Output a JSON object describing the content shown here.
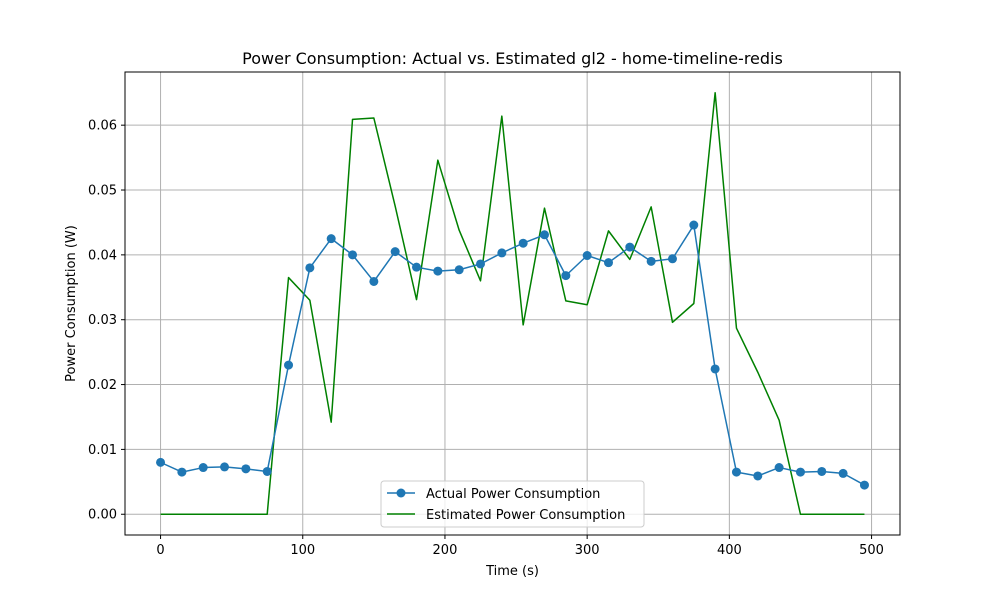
{
  "chart_data": {
    "type": "line",
    "title": "Power Consumption: Actual vs. Estimated gl2 - home-timeline-redis",
    "xlabel": "Time (s)",
    "ylabel": "Power Consumption (W)",
    "xlim": [
      -25,
      520
    ],
    "ylim": [
      -0.0032,
      0.0682
    ],
    "xticks": [
      0,
      100,
      200,
      300,
      400,
      500
    ],
    "yticks": [
      0.0,
      0.01,
      0.02,
      0.03,
      0.04,
      0.05,
      0.06
    ],
    "xtick_labels": [
      "0",
      "100",
      "200",
      "300",
      "400",
      "500"
    ],
    "ytick_labels": [
      "0.00",
      "0.01",
      "0.02",
      "0.03",
      "0.04",
      "0.05",
      "0.06"
    ],
    "grid": true,
    "legend_position": "bottom-center",
    "x": [
      0,
      15,
      30,
      45,
      60,
      75,
      90,
      105,
      120,
      135,
      150,
      165,
      180,
      195,
      210,
      225,
      240,
      255,
      270,
      285,
      300,
      315,
      330,
      345,
      360,
      375,
      390,
      405,
      420,
      435,
      450,
      465,
      480,
      495
    ],
    "series": [
      {
        "name": "Actual Power Consumption",
        "color": "#1f77b4",
        "marker": "circle",
        "values": [
          0.008,
          0.0065,
          0.0072,
          0.0073,
          0.007,
          0.0066,
          0.023,
          0.038,
          0.0425,
          0.04,
          0.0359,
          0.0405,
          0.0381,
          0.0375,
          0.0377,
          0.0386,
          0.0403,
          0.0418,
          0.0431,
          0.0368,
          0.0399,
          0.0388,
          0.0412,
          0.039,
          0.0394,
          0.0446,
          0.0224,
          0.0065,
          0.0059,
          0.0072,
          0.0065,
          0.0066,
          0.0063,
          0.0045
        ]
      },
      {
        "name": "Estimated Power Consumption",
        "color": "#008000",
        "marker": "none",
        "values": [
          0.0,
          0.0,
          0.0,
          0.0,
          0.0,
          0.0,
          0.0365,
          0.033,
          0.0142,
          0.0609,
          0.0611,
          0.0475,
          0.0331,
          0.0546,
          0.0438,
          0.036,
          0.0614,
          0.0292,
          0.0472,
          0.0329,
          0.0323,
          0.0437,
          0.0393,
          0.0474,
          0.0296,
          0.0325,
          0.065,
          0.0287,
          0.0219,
          0.0145,
          0.0,
          0.0,
          0.0,
          0.0
        ]
      }
    ]
  }
}
